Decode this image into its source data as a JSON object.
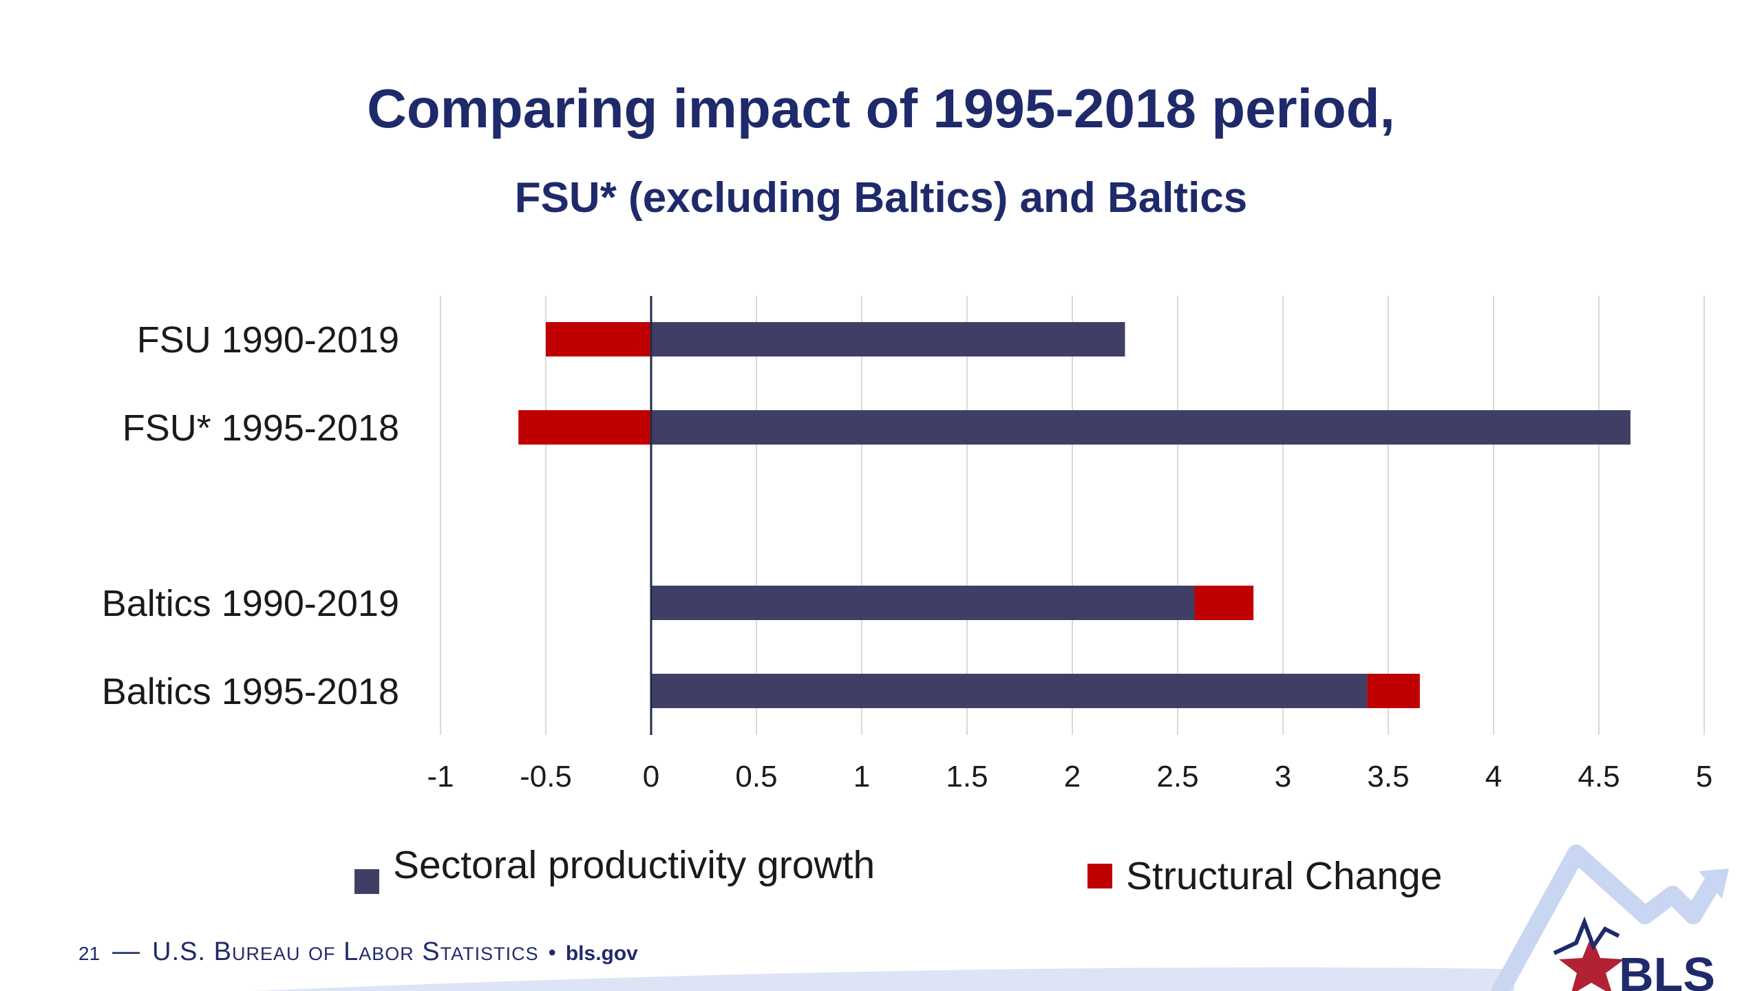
{
  "slide": {
    "title": "Comparing impact of 1995-2018 period,",
    "subtitle": "FSU* (excluding Baltics) and Baltics",
    "page_number": "21",
    "footer_separator": "—",
    "agency": "U.S. Bureau of Labor Statistics",
    "bullet": "•",
    "website": "bls.gov",
    "logo_text": "BLS"
  },
  "colors": {
    "title": "#1f2a6b",
    "sectoral": "#3f3f66",
    "structural": "#c00000",
    "grid": "#d9d9d9"
  },
  "chart_data": {
    "type": "bar",
    "orientation": "horizontal",
    "stacked": true,
    "categories": [
      "FSU 1990-2019",
      "FSU* 1995-2018",
      "",
      "Baltics 1990-2019",
      "Baltics 1995-2018"
    ],
    "series": [
      {
        "name": "Sectoral productivity growth",
        "values": [
          2.25,
          4.65,
          null,
          2.58,
          3.4
        ]
      },
      {
        "name": "Structural Change",
        "values": [
          -0.5,
          -0.63,
          null,
          0.28,
          0.25
        ]
      }
    ],
    "xlim": [
      -1,
      5
    ],
    "xticks": [
      "-1",
      "-0.5",
      "0",
      "0.5",
      "1",
      "1.5",
      "2",
      "2.5",
      "3",
      "3.5",
      "4",
      "4.5",
      "5"
    ],
    "grid": "vertical",
    "legend_position": "bottom"
  }
}
